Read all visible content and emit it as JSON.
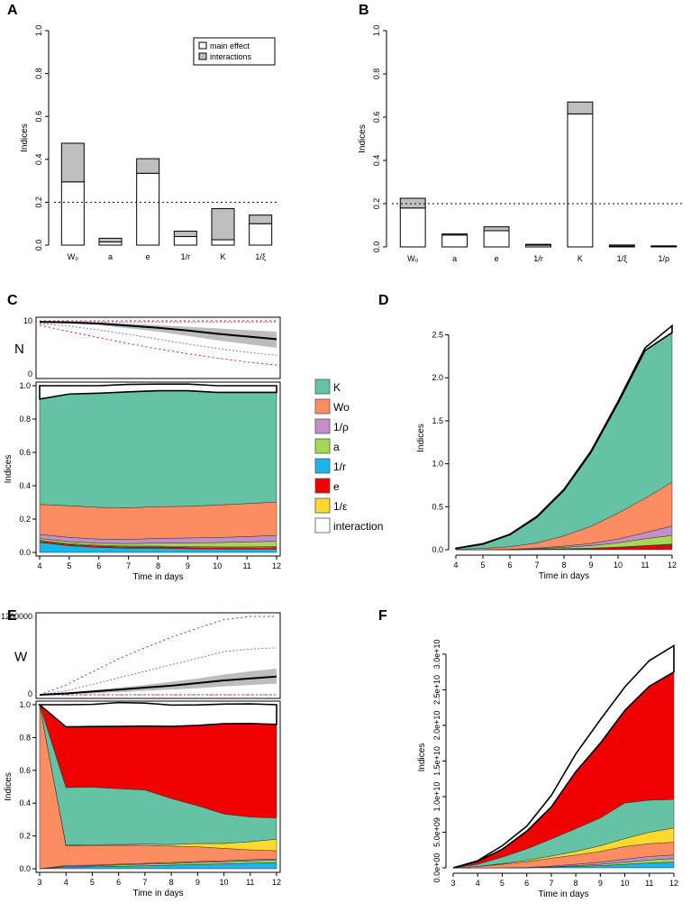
{
  "palette": {
    "K": "#66c2a5",
    "W0": "#fc8d62",
    "rho": "#c38fc7",
    "a": "#a6d854",
    "r": "#1ab5e8",
    "e": "#f00000",
    "eps": "#ffd92f",
    "interaction": "#ffffff",
    "mainfill": "#ffffff",
    "interfill": "#bfbfbf"
  },
  "chart_data": [
    {
      "panel": "A",
      "type": "bar",
      "stacked": true,
      "categories": [
        "W₀",
        "a",
        "e",
        "1/r",
        "K",
        "1/ξ"
      ],
      "series": [
        {
          "name": "main effect",
          "values": [
            0.295,
            0.015,
            0.335,
            0.04,
            0.025,
            0.1
          ]
        },
        {
          "name": "interactions",
          "values": [
            0.18,
            0.017,
            0.068,
            0.025,
            0.145,
            0.04
          ]
        }
      ],
      "ylabel": "Indices",
      "ylim": [
        0,
        1
      ],
      "yticks": [
        "0.0",
        "0.2",
        "0.4",
        "0.6",
        "0.8",
        "1.0"
      ],
      "hline": 0.2,
      "legend": [
        "main effect",
        "interactions"
      ]
    },
    {
      "panel": "B",
      "type": "bar",
      "stacked": true,
      "categories": [
        "W₀",
        "a",
        "e",
        "1/r",
        "K",
        "1/ξ",
        "1/ρ"
      ],
      "series": [
        {
          "name": "main effect",
          "values": [
            0.18,
            0.055,
            0.075,
            0.008,
            0.615,
            0.004,
            0.002
          ]
        },
        {
          "name": "interactions",
          "values": [
            0.045,
            0.005,
            0.018,
            0.004,
            0.055,
            0.005,
            0.003
          ]
        }
      ],
      "ylabel": "Indices",
      "ylim": [
        0,
        1
      ],
      "yticks": [
        "0.0",
        "0.2",
        "0.4",
        "0.6",
        "0.8",
        "1.0"
      ],
      "hline": 0.2
    },
    {
      "panel": "C",
      "type": "area",
      "x": [
        4,
        5,
        6,
        7,
        8,
        9,
        10,
        11,
        12
      ],
      "xlabel": "Time in days",
      "ylabel": "Indices",
      "ylim": [
        0,
        1
      ],
      "yticks": [
        "0.0",
        "0.2",
        "0.4",
        "0.6",
        "0.8",
        "1.0"
      ],
      "series": [
        {
          "name": "1/r",
          "values": [
            0.06,
            0.04,
            0.03,
            0.025,
            0.025,
            0.022,
            0.02,
            0.02,
            0.02
          ]
        },
        {
          "name": "e",
          "values": [
            0.008,
            0.008,
            0.008,
            0.008,
            0.008,
            0.008,
            0.008,
            0.008,
            0.01
          ]
        },
        {
          "name": "1/ε",
          "values": [
            0.005,
            0.005,
            0.005,
            0.005,
            0.005,
            0.005,
            0.005,
            0.005,
            0.005
          ]
        },
        {
          "name": "a",
          "values": [
            0.01,
            0.012,
            0.012,
            0.015,
            0.018,
            0.022,
            0.026,
            0.03,
            0.032
          ]
        },
        {
          "name": "1/ρ",
          "values": [
            0.025,
            0.025,
            0.025,
            0.025,
            0.028,
            0.03,
            0.03,
            0.032,
            0.035
          ]
        },
        {
          "name": "Wo",
          "values": [
            0.18,
            0.19,
            0.19,
            0.19,
            0.19,
            0.19,
            0.195,
            0.198,
            0.2
          ]
        },
        {
          "name": "K",
          "values": [
            0.632,
            0.67,
            0.685,
            0.695,
            0.696,
            0.693,
            0.676,
            0.667,
            0.658
          ]
        },
        {
          "name": "interaction",
          "values": [
            0.08,
            0.05,
            0.045,
            0.045,
            0.04,
            0.04,
            0.04,
            0.04,
            0.04
          ]
        }
      ],
      "inset": {
        "label": "N",
        "yticks": [
          "0",
          "10"
        ],
        "mean": [
          9.8,
          9.7,
          9.5,
          9.1,
          8.7,
          8.2,
          7.6,
          7.1,
          6.6
        ],
        "sd_lo": [
          9.7,
          9.5,
          9.2,
          8.6,
          8.0,
          7.2,
          6.4,
          5.7,
          5.0
        ],
        "sd_hi": [
          9.9,
          9.8,
          9.7,
          9.5,
          9.2,
          8.9,
          8.6,
          8.3,
          8.0
        ],
        "blue_lo": [
          9.5,
          9.0,
          8.3,
          7.5,
          6.6,
          5.7,
          4.9,
          4.2,
          3.6
        ],
        "blue_hi": [
          9.9,
          9.9,
          9.8,
          9.8,
          9.8,
          9.8,
          9.8,
          9.8,
          9.8
        ],
        "red_lo": [
          9.2,
          8.0,
          6.9,
          5.8,
          4.8,
          3.9,
          3.1,
          2.4,
          1.8
        ],
        "red_hi": [
          10,
          10,
          10,
          10,
          10,
          10,
          10,
          10,
          10
        ]
      }
    },
    {
      "panel": "D",
      "type": "area",
      "x": [
        4,
        5,
        6,
        7,
        8,
        9,
        10,
        11,
        12
      ],
      "xlabel": "Time in days",
      "ylabel": "Indices",
      "ylim": [
        0,
        2.6
      ],
      "yticks": [
        "0.0",
        "0.5",
        "1.0",
        "1.5",
        "2.0",
        "2.5"
      ],
      "series": [
        {
          "name": "1/r",
          "values": [
            0,
            0,
            0,
            0.002,
            0.004,
            0.005,
            0.006,
            0.008,
            0.01
          ]
        },
        {
          "name": "e",
          "values": [
            0,
            0,
            0,
            0.003,
            0.006,
            0.01,
            0.02,
            0.035,
            0.05
          ]
        },
        {
          "name": "1/ε",
          "values": [
            0,
            0,
            0,
            0.001,
            0.002,
            0.003,
            0.004,
            0.005,
            0.006
          ]
        },
        {
          "name": "a",
          "values": [
            0,
            0,
            0.002,
            0.005,
            0.015,
            0.03,
            0.05,
            0.08,
            0.1
          ]
        },
        {
          "name": "1/ρ",
          "values": [
            0,
            0,
            0.003,
            0.008,
            0.015,
            0.025,
            0.045,
            0.07,
            0.11
          ]
        },
        {
          "name": "Wo",
          "values": [
            0.005,
            0.015,
            0.03,
            0.06,
            0.12,
            0.2,
            0.3,
            0.4,
            0.51
          ]
        },
        {
          "name": "K",
          "values": [
            0.01,
            0.05,
            0.14,
            0.3,
            0.53,
            0.86,
            1.28,
            1.72,
            1.74
          ]
        },
        {
          "name": "interaction",
          "values": [
            0.002,
            0.005,
            0.005,
            0.01,
            0.01,
            0.015,
            0.02,
            0.03,
            0.08
          ]
        }
      ]
    },
    {
      "panel": "E",
      "type": "area",
      "x": [
        3,
        4,
        5,
        6,
        7,
        8,
        9,
        10,
        11,
        12
      ],
      "xlabel": "Time in days",
      "ylabel": "Indices",
      "ylim": [
        0,
        1
      ],
      "yticks": [
        "0.0",
        "0.2",
        "0.4",
        "0.6",
        "0.8",
        "1.0"
      ],
      "series": [
        {
          "name": "1/r",
          "values": [
            0,
            0.01,
            0.012,
            0.015,
            0.018,
            0.022,
            0.026,
            0.03,
            0.034,
            0.038
          ]
        },
        {
          "name": "a",
          "values": [
            0,
            0.005,
            0.005,
            0.008,
            0.01,
            0.01,
            0.012,
            0.012,
            0.014,
            0.015
          ]
        },
        {
          "name": "1/ρ",
          "values": [
            0,
            0.005,
            0.005,
            0.005,
            0.005,
            0.006,
            0.006,
            0.007,
            0.007,
            0.007
          ]
        },
        {
          "name": "Wo",
          "values": [
            1,
            0.12,
            0.12,
            0.115,
            0.11,
            0.1,
            0.09,
            0.075,
            0.06,
            0.05
          ]
        },
        {
          "name": "1/ε",
          "values": [
            0,
            0.005,
            0.005,
            0.005,
            0.007,
            0.01,
            0.02,
            0.03,
            0.05,
            0.07
          ]
        },
        {
          "name": "K",
          "values": [
            0,
            0.35,
            0.35,
            0.34,
            0.33,
            0.28,
            0.23,
            0.18,
            0.15,
            0.13
          ]
        },
        {
          "name": "e",
          "values": [
            0,
            0.37,
            0.37,
            0.38,
            0.39,
            0.44,
            0.49,
            0.55,
            0.57,
            0.57
          ]
        },
        {
          "name": "interaction",
          "values": [
            0,
            0.135,
            0.135,
            0.145,
            0.14,
            0.13,
            0.125,
            0.12,
            0.12,
            0.12
          ]
        }
      ],
      "inset": {
        "label": "W",
        "yticks": [
          "0",
          "1200000"
        ],
        "mean": [
          0,
          20000,
          50000,
          80000,
          110000,
          140000,
          180000,
          220000,
          250000,
          280000
        ],
        "sd_lo": [
          0,
          10000,
          20000,
          40000,
          60000,
          80000,
          100000,
          130000,
          150000,
          170000
        ],
        "sd_hi": [
          0,
          30000,
          70000,
          110000,
          150000,
          200000,
          250000,
          310000,
          360000,
          400000
        ],
        "blue_lo": [
          0,
          0,
          0,
          0,
          0,
          0,
          0,
          0,
          0,
          0
        ],
        "blue_hi": [
          0,
          60000,
          160000,
          260000,
          360000,
          460000,
          560000,
          660000,
          700000,
          720000
        ],
        "red_lo": [
          0,
          0,
          0,
          0,
          0,
          0,
          0,
          0,
          0,
          0
        ],
        "red_hi": [
          0,
          150000,
          350000,
          550000,
          720000,
          880000,
          1020000,
          1150000,
          1200000,
          1200000
        ]
      }
    },
    {
      "panel": "F",
      "type": "area",
      "x": [
        3,
        4,
        5,
        6,
        7,
        8,
        9,
        10,
        11,
        12
      ],
      "xlabel": "Time in days",
      "ylabel": "Indices",
      "ylim": [
        0,
        31000000000.0
      ],
      "yticks": [
        "0.0e+00",
        "5.0e+09",
        "1.0e+10",
        "1.5e+10",
        "2.0e+10",
        "2.5e+10",
        "3.0e+10"
      ],
      "series": [
        {
          "name": "1/r",
          "values": [
            0,
            0,
            0,
            0,
            100000000.0,
            200000000.0,
            300000000.0,
            500000000.0,
            700000000.0,
            800000000.0
          ]
        },
        {
          "name": "a",
          "values": [
            0,
            0,
            0,
            0,
            50000000.0,
            100000000.0,
            200000000.0,
            300000000.0,
            400000000.0,
            500000000.0
          ]
        },
        {
          "name": "1/ρ",
          "values": [
            0,
            0,
            0,
            50000000.0,
            100000000.0,
            200000000.0,
            300000000.0,
            400000000.0,
            500000000.0,
            500000000.0
          ]
        },
        {
          "name": "Wo",
          "values": [
            0,
            200000000.0,
            500000000.0,
            800000000.0,
            1100000000.0,
            1300000000.0,
            1500000000.0,
            1800000000.0,
            1800000000.0,
            1800000000.0
          ]
        },
        {
          "name": "1/ε",
          "values": [
            0,
            0,
            100000000.0,
            200000000.0,
            300000000.0,
            500000000.0,
            800000000.0,
            1100000000.0,
            1600000000.0,
            2000000000.0
          ]
        },
        {
          "name": "K",
          "values": [
            0,
            300000000.0,
            900000000.0,
            1600000000.0,
            2400000000.0,
            3200000000.0,
            3900000000.0,
            5000000000.0,
            4500000000.0,
            4000000000.0
          ]
        },
        {
          "name": "e",
          "values": [
            0,
            400000000.0,
            1100000000.0,
            2500000000.0,
            4500000000.0,
            8000000000.0,
            10500000000.0,
            13000000000.0,
            16000000000.0,
            17900000000.0
          ]
        },
        {
          "name": "interaction",
          "values": [
            0,
            100000000.0,
            500000000.0,
            700000000.0,
            1600000000.0,
            2500000000.0,
            3300000000.0,
            3300000000.0,
            3600000000.0,
            3700000000.0
          ]
        }
      ]
    }
  ],
  "legend_items": [
    {
      "key": "K",
      "label": "K"
    },
    {
      "key": "W0",
      "label": "Wo"
    },
    {
      "key": "rho",
      "label": "1/ρ"
    },
    {
      "key": "a",
      "label": "a"
    },
    {
      "key": "r",
      "label": "1/r"
    },
    {
      "key": "e",
      "label": "e"
    },
    {
      "key": "eps",
      "label": "1/ε"
    },
    {
      "key": "interaction",
      "label": "interaction"
    }
  ]
}
